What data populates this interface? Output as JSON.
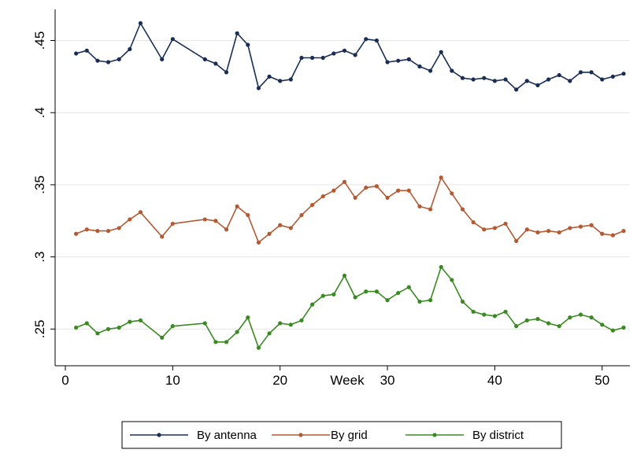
{
  "chart_data": {
    "type": "line",
    "title": "",
    "xlabel": "Week",
    "ylabel": "",
    "xlim": [
      0,
      52
    ],
    "ylim": [
      0.23,
      0.465
    ],
    "x_ticks": [
      0,
      10,
      20,
      30,
      40,
      50
    ],
    "x_tick_labels": [
      "0",
      "10",
      "20",
      "30",
      "40",
      "50"
    ],
    "y_ticks": [
      0.25,
      0.3,
      0.35,
      0.4,
      0.45
    ],
    "y_tick_labels": [
      ".25",
      ".3",
      ".35",
      ".4",
      ".45"
    ],
    "grid": "horizontal",
    "legend_position": "bottom",
    "series": [
      {
        "name": "By antenna",
        "color": "#1a2e55",
        "x": [
          1,
          2,
          3,
          4,
          5,
          6,
          7,
          9,
          10,
          13,
          14,
          15,
          16,
          17,
          18,
          19,
          20,
          21,
          22,
          23,
          24,
          25,
          26,
          27,
          28,
          29,
          30,
          31,
          32,
          33,
          34,
          35,
          36,
          37,
          38,
          39,
          40,
          41,
          42,
          43,
          44,
          45,
          46,
          47,
          48,
          49,
          50,
          51,
          52
        ],
        "values": [
          0.441,
          0.443,
          0.436,
          0.435,
          0.437,
          0.444,
          0.462,
          0.437,
          0.451,
          0.437,
          0.434,
          0.428,
          0.455,
          0.447,
          0.417,
          0.425,
          0.422,
          0.423,
          0.438,
          0.438,
          0.438,
          0.441,
          0.443,
          0.44,
          0.451,
          0.45,
          0.435,
          0.436,
          0.437,
          0.432,
          0.429,
          0.442,
          0.429,
          0.424,
          0.423,
          0.424,
          0.422,
          0.423,
          0.416,
          0.422,
          0.419,
          0.423,
          0.426,
          0.422,
          0.428,
          0.428,
          0.423,
          0.425,
          0.427
        ]
      },
      {
        "name": "By grid",
        "color": "#b35a33",
        "x": [
          1,
          2,
          3,
          4,
          5,
          6,
          7,
          9,
          10,
          13,
          14,
          15,
          16,
          17,
          18,
          19,
          20,
          21,
          22,
          23,
          24,
          25,
          26,
          27,
          28,
          29,
          30,
          31,
          32,
          33,
          34,
          35,
          36,
          37,
          38,
          39,
          40,
          41,
          42,
          43,
          44,
          45,
          46,
          47,
          48,
          49,
          50,
          51,
          52
        ],
        "values": [
          0.316,
          0.319,
          0.318,
          0.318,
          0.32,
          0.326,
          0.331,
          0.314,
          0.323,
          0.326,
          0.325,
          0.319,
          0.335,
          0.329,
          0.31,
          0.316,
          0.322,
          0.32,
          0.329,
          0.336,
          0.342,
          0.346,
          0.352,
          0.341,
          0.348,
          0.349,
          0.341,
          0.346,
          0.346,
          0.335,
          0.333,
          0.355,
          0.344,
          0.333,
          0.324,
          0.319,
          0.32,
          0.323,
          0.311,
          0.319,
          0.317,
          0.318,
          0.317,
          0.32,
          0.321,
          0.322,
          0.316,
          0.315,
          0.318
        ]
      },
      {
        "name": "By district",
        "color": "#3a8a22",
        "x": [
          1,
          2,
          3,
          4,
          5,
          6,
          7,
          9,
          10,
          13,
          14,
          15,
          16,
          17,
          18,
          19,
          20,
          21,
          22,
          23,
          24,
          25,
          26,
          27,
          28,
          29,
          30,
          31,
          32,
          33,
          34,
          35,
          36,
          37,
          38,
          39,
          40,
          41,
          42,
          43,
          44,
          45,
          46,
          47,
          48,
          49,
          50,
          51,
          52
        ],
        "values": [
          0.251,
          0.254,
          0.247,
          0.25,
          0.251,
          0.255,
          0.256,
          0.244,
          0.252,
          0.254,
          0.241,
          0.241,
          0.248,
          0.258,
          0.237,
          0.247,
          0.254,
          0.253,
          0.256,
          0.267,
          0.273,
          0.274,
          0.287,
          0.272,
          0.276,
          0.276,
          0.27,
          0.275,
          0.279,
          0.269,
          0.27,
          0.293,
          0.284,
          0.269,
          0.262,
          0.26,
          0.259,
          0.262,
          0.252,
          0.256,
          0.257,
          0.254,
          0.252,
          0.258,
          0.26,
          0.258,
          0.253,
          0.249,
          0.251
        ]
      }
    ]
  }
}
